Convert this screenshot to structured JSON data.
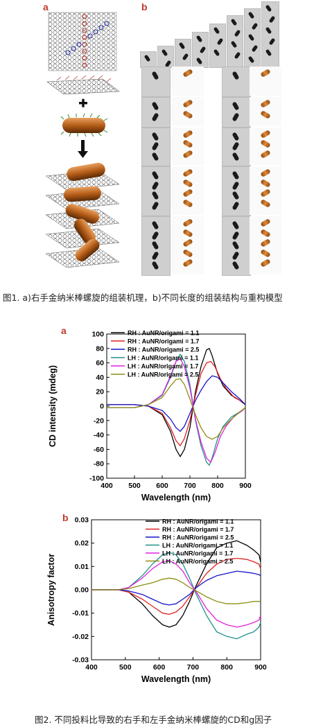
{
  "figure1": {
    "panel_a_label": "a",
    "panel_b_label": "b",
    "caption": "图1. a)右手金纳米棒螺旋的组装机理，b)不同长度的组装结构与重构模型"
  },
  "figure2": {
    "caption": "图2. 不同投料比导致的右手和左手金纳米棒螺旋的CD和g因子"
  },
  "colors": {
    "rh_11": "#000000",
    "rh_17": "#e02020",
    "rh_25": "#1414c8",
    "lh_11": "#20908a",
    "lh_17": "#e020e0",
    "lh_25": "#8c8c10",
    "panel_letter": "#c0392b",
    "rod": "#d07a2a"
  },
  "chart_data": [
    {
      "type": "line",
      "panel_label": "a",
      "xlabel": "Wavelength (nm)",
      "ylabel": "CD intensity (mdeg)",
      "xlim": [
        400,
        900
      ],
      "ylim": [
        -100,
        100
      ],
      "xticks": [
        "400",
        "500",
        "600",
        "700",
        "800",
        "900"
      ],
      "yticks": [
        "100",
        "80",
        "60",
        "40",
        "20",
        "0",
        "-20",
        "-40",
        "-60",
        "-80",
        "-100"
      ],
      "legend": "top-left",
      "series": [
        {
          "name": "RH : AuNR/origami = 1.1",
          "color": "#000000",
          "x": [
            400,
            500,
            550,
            600,
            630,
            650,
            665,
            680,
            700,
            720,
            740,
            760,
            770,
            780,
            800,
            820,
            850,
            880,
            900
          ],
          "y": [
            2,
            2,
            0,
            -12,
            -35,
            -60,
            -70,
            -60,
            -30,
            20,
            55,
            78,
            80,
            70,
            45,
            28,
            15,
            8,
            2
          ]
        },
        {
          "name": "RH : AuNR/origami = 1.7",
          "color": "#e02020",
          "x": [
            400,
            500,
            550,
            600,
            630,
            650,
            665,
            680,
            700,
            720,
            740,
            760,
            775,
            790,
            810,
            830,
            860,
            890,
            900
          ],
          "y": [
            2,
            2,
            0,
            -10,
            -30,
            -48,
            -55,
            -45,
            -20,
            15,
            45,
            60,
            62,
            55,
            38,
            25,
            12,
            6,
            2
          ]
        },
        {
          "name": "RH : AuNR/origami = 2.5",
          "color": "#1414c8",
          "x": [
            400,
            500,
            550,
            600,
            630,
            650,
            665,
            680,
            700,
            720,
            740,
            760,
            780,
            800,
            820,
            850,
            880,
            900
          ],
          "y": [
            2,
            2,
            0,
            -6,
            -18,
            -30,
            -35,
            -28,
            -10,
            8,
            22,
            34,
            42,
            40,
            32,
            20,
            10,
            2
          ]
        },
        {
          "name": "LH : AuNR/origami = 1.1",
          "color": "#20908a",
          "x": [
            400,
            500,
            550,
            600,
            630,
            650,
            665,
            680,
            700,
            720,
            740,
            760,
            770,
            780,
            800,
            820,
            850,
            880,
            900
          ],
          "y": [
            -2,
            -2,
            2,
            15,
            40,
            62,
            72,
            62,
            30,
            -20,
            -55,
            -78,
            -82,
            -72,
            -45,
            -28,
            -15,
            -8,
            -2
          ]
        },
        {
          "name": "LH : AuNR/origami = 1.7",
          "color": "#e020e0",
          "x": [
            400,
            500,
            550,
            600,
            630,
            650,
            665,
            680,
            700,
            720,
            740,
            760,
            775,
            790,
            810,
            830,
            860,
            890,
            900
          ],
          "y": [
            -2,
            -2,
            2,
            16,
            42,
            62,
            66,
            55,
            25,
            -18,
            -50,
            -72,
            -78,
            -65,
            -42,
            -28,
            -14,
            -6,
            -2
          ]
        },
        {
          "name": "LH : AuNR/origami = 2.5",
          "color": "#8c8c10",
          "x": [
            400,
            500,
            550,
            600,
            630,
            650,
            665,
            680,
            700,
            720,
            740,
            760,
            780,
            800,
            820,
            850,
            880,
            900
          ],
          "y": [
            -2,
            -2,
            2,
            12,
            28,
            37,
            38,
            30,
            10,
            -12,
            -30,
            -42,
            -46,
            -42,
            -30,
            -18,
            -8,
            -2
          ]
        }
      ]
    },
    {
      "type": "line",
      "panel_label": "b",
      "xlabel": "Wavelength (nm)",
      "ylabel": "Anisotropy factor",
      "xlim": [
        400,
        900
      ],
      "ylim": [
        -0.03,
        0.03
      ],
      "xticks": [
        "400",
        "500",
        "600",
        "700",
        "800",
        "900"
      ],
      "yticks": [
        "0.03",
        "0.02",
        "0.01",
        "0.00",
        "-0.01",
        "-0.02",
        "-0.03"
      ],
      "legend": "top-right",
      "series": [
        {
          "name": "RH : AuNR/origami = 1.1",
          "color": "#000000",
          "x": [
            400,
            480,
            510,
            550,
            580,
            610,
            630,
            650,
            670,
            690,
            710,
            740,
            770,
            800,
            830,
            860,
            880,
            895,
            900
          ],
          "y": [
            0,
            0,
            -0.001,
            -0.006,
            -0.011,
            -0.015,
            -0.016,
            -0.015,
            -0.011,
            -0.005,
            0.002,
            0.011,
            0.018,
            0.02,
            0.021,
            0.019,
            0.017,
            0.015,
            0.012
          ]
        },
        {
          "name": "RH : AuNR/origami = 1.7",
          "color": "#e02020",
          "x": [
            400,
            480,
            510,
            550,
            580,
            610,
            630,
            650,
            670,
            690,
            710,
            740,
            770,
            800,
            830,
            860,
            880,
            895,
            900
          ],
          "y": [
            0,
            0,
            -0.001,
            -0.004,
            -0.007,
            -0.01,
            -0.0105,
            -0.0095,
            -0.007,
            -0.003,
            0.001,
            0.007,
            0.011,
            0.013,
            0.0135,
            0.013,
            0.012,
            0.011,
            0.009
          ]
        },
        {
          "name": "RH : AuNR/origami = 2.5",
          "color": "#1414c8",
          "x": [
            400,
            480,
            510,
            550,
            580,
            610,
            630,
            650,
            670,
            690,
            710,
            740,
            770,
            800,
            830,
            860,
            880,
            895,
            900
          ],
          "y": [
            0,
            0,
            -0.0005,
            -0.002,
            -0.004,
            -0.006,
            -0.0065,
            -0.006,
            -0.004,
            -0.002,
            0.001,
            0.004,
            0.006,
            0.007,
            0.008,
            0.0075,
            0.007,
            0.0065,
            0.006
          ]
        },
        {
          "name": "LH : AuNR/origami = 1.1",
          "color": "#20908a",
          "x": [
            400,
            480,
            510,
            550,
            580,
            610,
            630,
            650,
            670,
            690,
            710,
            740,
            770,
            800,
            830,
            860,
            880,
            895,
            900
          ],
          "y": [
            0,
            0,
            0.001,
            0.006,
            0.011,
            0.015,
            0.016,
            0.015,
            0.011,
            0.005,
            -0.002,
            -0.011,
            -0.018,
            -0.02,
            -0.021,
            -0.019,
            -0.018,
            -0.016,
            -0.014
          ]
        },
        {
          "name": "LH : AuNR/origami = 1.7",
          "color": "#e020e0",
          "x": [
            400,
            480,
            510,
            550,
            580,
            610,
            630,
            650,
            670,
            690,
            710,
            740,
            770,
            800,
            830,
            860,
            880,
            895,
            900
          ],
          "y": [
            0,
            0,
            0.001,
            0.005,
            0.009,
            0.012,
            0.0125,
            0.011,
            0.008,
            0.003,
            -0.001,
            -0.008,
            -0.013,
            -0.015,
            -0.016,
            -0.015,
            -0.014,
            -0.013,
            -0.011
          ]
        },
        {
          "name": "LH : AuNR/origami = 2.5",
          "color": "#8c8c10",
          "x": [
            400,
            480,
            510,
            550,
            580,
            610,
            630,
            650,
            670,
            690,
            710,
            740,
            770,
            800,
            830,
            860,
            880,
            895,
            900
          ],
          "y": [
            0,
            0,
            0.0005,
            0.002,
            0.003,
            0.0045,
            0.005,
            0.0045,
            0.003,
            0.001,
            -0.0005,
            -0.003,
            -0.005,
            -0.006,
            -0.006,
            -0.0055,
            -0.005,
            -0.005,
            -0.005
          ]
        }
      ]
    }
  ]
}
